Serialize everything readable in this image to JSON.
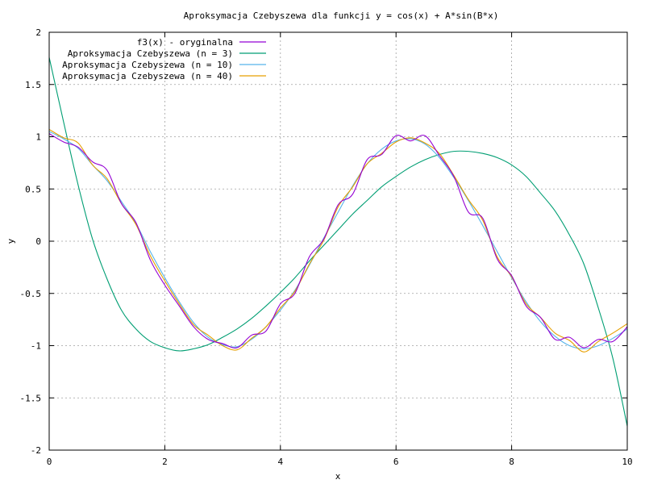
{
  "chart_data": {
    "type": "line",
    "title": "Aproksymacja Czebyszewa dla funkcji y = cos(x) + A*sin(B*x)",
    "xlabel": "x",
    "ylabel": "y",
    "xlim": [
      0,
      10
    ],
    "ylim": [
      -2,
      2
    ],
    "x_ticks": [
      "0",
      "2",
      "4",
      "6",
      "8",
      "10"
    ],
    "y_ticks": [
      "-2",
      "-1.5",
      "-1",
      "-0.5",
      "0",
      "0.5",
      "1",
      "1.5",
      "2"
    ],
    "grid": true,
    "legend_position": "top-left",
    "x": [
      0,
      0.25,
      0.5,
      0.75,
      1,
      1.25,
      1.5,
      1.75,
      2,
      2.25,
      2.5,
      2.75,
      3,
      3.25,
      3.5,
      3.75,
      4,
      4.25,
      4.5,
      4.75,
      5,
      5.25,
      5.5,
      5.75,
      6,
      6.25,
      6.5,
      6.75,
      7,
      7.25,
      7.5,
      7.75,
      8,
      8.25,
      8.5,
      8.75,
      9,
      9.25,
      9.5,
      9.75,
      10
    ],
    "series": [
      {
        "name": "f3(x) - oryginalna",
        "color": "#9400d3",
        "values": [
          1.03,
          0.95,
          0.9,
          0.76,
          0.68,
          0.36,
          0.18,
          -0.18,
          -0.42,
          -0.62,
          -0.82,
          -0.94,
          -0.98,
          -1.02,
          -0.9,
          -0.86,
          -0.6,
          -0.5,
          -0.15,
          0.02,
          0.35,
          0.45,
          0.78,
          0.83,
          1.01,
          0.96,
          1.01,
          0.82,
          0.62,
          0.28,
          0.22,
          -0.17,
          -0.33,
          -0.62,
          -0.73,
          -0.94,
          -0.92,
          -1.02,
          -0.94,
          -0.96,
          -0.82
        ]
      },
      {
        "name": "Aproksymacja Czebyszewa (n = 3)",
        "color": "#009e73",
        "values": [
          1.76,
          1.14,
          0.54,
          0.02,
          -0.36,
          -0.66,
          -0.84,
          -0.96,
          -1.02,
          -1.05,
          -1.03,
          -0.99,
          -0.92,
          -0.84,
          -0.74,
          -0.62,
          -0.49,
          -0.35,
          -0.19,
          -0.04,
          0.11,
          0.26,
          0.39,
          0.52,
          0.62,
          0.71,
          0.78,
          0.83,
          0.86,
          0.86,
          0.84,
          0.8,
          0.73,
          0.62,
          0.46,
          0.29,
          0.06,
          -0.22,
          -0.64,
          -1.12,
          -1.77
        ]
      },
      {
        "name": "Aproksymacja Czebyszewa (n = 10)",
        "color": "#56b4e9",
        "values": [
          1.05,
          0.98,
          0.89,
          0.73,
          0.58,
          0.38,
          0.17,
          -0.1,
          -0.35,
          -0.58,
          -0.78,
          -0.92,
          -0.99,
          -1.01,
          -0.94,
          -0.82,
          -0.66,
          -0.47,
          -0.23,
          0.03,
          0.28,
          0.53,
          0.74,
          0.88,
          0.96,
          0.98,
          0.93,
          0.8,
          0.61,
          0.39,
          0.15,
          -0.1,
          -0.35,
          -0.58,
          -0.77,
          -0.91,
          -1.0,
          -1.03,
          -1.0,
          -0.93,
          -0.84
        ]
      },
      {
        "name": "Aproksymacja Czebyszewa (n = 40)",
        "color": "#e69f00",
        "values": [
          1.07,
          0.99,
          0.94,
          0.73,
          0.6,
          0.36,
          0.16,
          -0.14,
          -0.38,
          -0.6,
          -0.8,
          -0.9,
          -1.0,
          -1.04,
          -0.93,
          -0.82,
          -0.64,
          -0.48,
          -0.22,
          0.01,
          0.33,
          0.52,
          0.74,
          0.84,
          0.95,
          0.99,
          0.94,
          0.84,
          0.63,
          0.4,
          0.2,
          -0.15,
          -0.34,
          -0.6,
          -0.73,
          -0.88,
          -0.95,
          -1.06,
          -0.96,
          -0.88,
          -0.79
        ]
      }
    ]
  }
}
